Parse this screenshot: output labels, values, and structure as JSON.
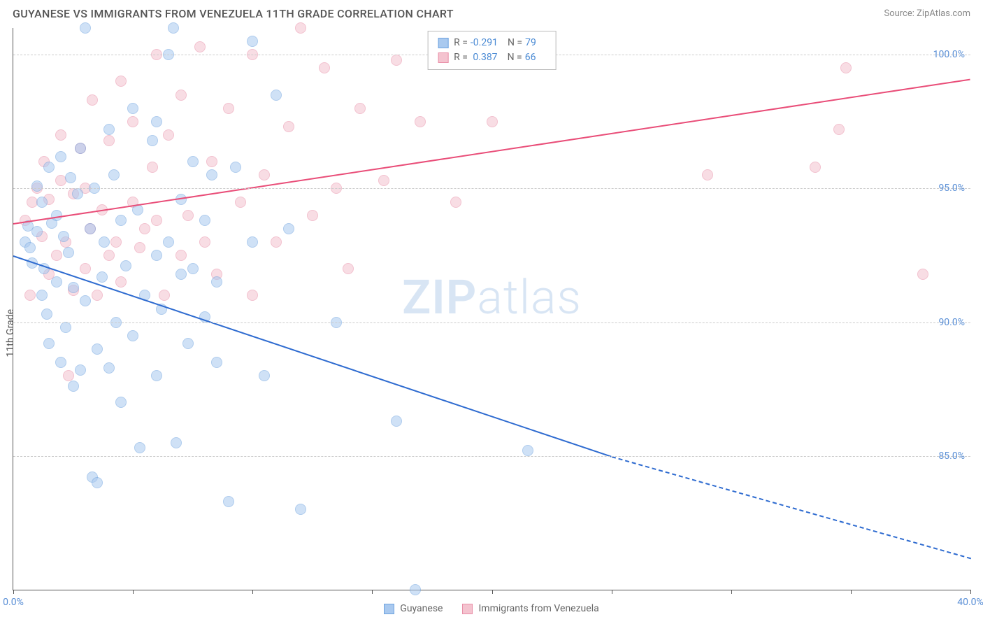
{
  "header": {
    "title": "GUYANESE VS IMMIGRANTS FROM VENEZUELA 11TH GRADE CORRELATION CHART",
    "source": "Source: ZipAtlas.com"
  },
  "chart": {
    "type": "scatter",
    "y_axis_label": "11th Grade",
    "watermark_left": "ZIP",
    "watermark_right": "atlas",
    "background_color": "#ffffff",
    "grid_color": "#cccccc",
    "axis_color": "#555555",
    "tick_label_color": "#5a8fd6",
    "xlim": [
      0,
      40
    ],
    "ylim": [
      80,
      101
    ],
    "yticks": [
      85.0,
      90.0,
      95.0,
      100.0
    ],
    "ytick_labels": [
      "85.0%",
      "90.0%",
      "95.0%",
      "100.0%"
    ],
    "xticks": [
      0,
      5,
      10,
      15,
      20,
      25,
      30,
      35,
      40
    ],
    "xtick_labels": {
      "0": "0.0%",
      "40": "40.0%"
    },
    "series": {
      "guyanese": {
        "label": "Guyanese",
        "fill": "#a9c9ef",
        "stroke": "#6ea3df",
        "trend_color": "#2e6bd0",
        "R": "-0.291",
        "N": "79",
        "trend": {
          "x1": 0,
          "y1": 92.5,
          "x2": 25,
          "y2": 85.0
        },
        "trend_dash": {
          "x1": 25,
          "y1": 85.0,
          "x2": 40,
          "y2": 81.2
        },
        "points": [
          [
            0.5,
            93.0
          ],
          [
            0.6,
            93.6
          ],
          [
            0.7,
            92.8
          ],
          [
            0.8,
            92.2
          ],
          [
            1.0,
            93.4
          ],
          [
            1.0,
            95.1
          ],
          [
            1.2,
            94.5
          ],
          [
            1.2,
            91.0
          ],
          [
            1.3,
            92.0
          ],
          [
            1.4,
            90.3
          ],
          [
            1.5,
            95.8
          ],
          [
            1.5,
            89.2
          ],
          [
            1.6,
            93.7
          ],
          [
            1.8,
            94.0
          ],
          [
            1.8,
            91.5
          ],
          [
            2.0,
            96.2
          ],
          [
            2.0,
            88.5
          ],
          [
            2.1,
            93.2
          ],
          [
            2.2,
            89.8
          ],
          [
            2.3,
            92.6
          ],
          [
            2.4,
            95.4
          ],
          [
            2.5,
            87.6
          ],
          [
            2.5,
            91.3
          ],
          [
            2.7,
            94.8
          ],
          [
            2.8,
            96.5
          ],
          [
            2.8,
            88.2
          ],
          [
            3.0,
            101.0
          ],
          [
            3.0,
            90.8
          ],
          [
            3.2,
            93.5
          ],
          [
            3.3,
            84.2
          ],
          [
            3.4,
            95.0
          ],
          [
            3.5,
            89.0
          ],
          [
            3.5,
            84.0
          ],
          [
            3.7,
            91.7
          ],
          [
            3.8,
            93.0
          ],
          [
            4.0,
            97.2
          ],
          [
            4.0,
            88.3
          ],
          [
            4.2,
            95.5
          ],
          [
            4.3,
            90.0
          ],
          [
            4.5,
            93.8
          ],
          [
            4.5,
            87.0
          ],
          [
            4.7,
            92.1
          ],
          [
            5.0,
            98.0
          ],
          [
            5.0,
            89.5
          ],
          [
            5.2,
            94.2
          ],
          [
            5.3,
            85.3
          ],
          [
            5.5,
            91.0
          ],
          [
            5.8,
            96.8
          ],
          [
            6.0,
            97.5
          ],
          [
            6.0,
            88.0
          ],
          [
            6.0,
            92.5
          ],
          [
            6.2,
            90.5
          ],
          [
            6.5,
            100.0
          ],
          [
            6.5,
            93.0
          ],
          [
            6.7,
            101.0
          ],
          [
            6.8,
            85.5
          ],
          [
            7.0,
            91.8
          ],
          [
            7.0,
            94.6
          ],
          [
            7.3,
            89.2
          ],
          [
            7.5,
            96.0
          ],
          [
            7.5,
            92.0
          ],
          [
            8.0,
            93.8
          ],
          [
            8.0,
            90.2
          ],
          [
            8.3,
            95.5
          ],
          [
            8.5,
            91.5
          ],
          [
            8.5,
            88.5
          ],
          [
            9.0,
            83.3
          ],
          [
            9.3,
            95.8
          ],
          [
            10.0,
            93.0
          ],
          [
            10.0,
            100.5
          ],
          [
            10.5,
            88.0
          ],
          [
            11.0,
            98.5
          ],
          [
            11.5,
            93.5
          ],
          [
            12.0,
            83.0
          ],
          [
            13.5,
            90.0
          ],
          [
            16.0,
            86.3
          ],
          [
            16.8,
            80.0
          ],
          [
            21.5,
            85.2
          ]
        ]
      },
      "venezuela": {
        "label": "Immigrants from Venezuela",
        "fill": "#f4c3cf",
        "stroke": "#e98fa8",
        "trend_color": "#e94d78",
        "R": "0.387",
        "N": "66",
        "trend": {
          "x1": 0,
          "y1": 93.7,
          "x2": 40,
          "y2": 99.1
        },
        "points": [
          [
            0.5,
            93.8
          ],
          [
            0.7,
            91.0
          ],
          [
            0.8,
            94.5
          ],
          [
            1.0,
            95.0
          ],
          [
            1.2,
            93.2
          ],
          [
            1.3,
            96.0
          ],
          [
            1.5,
            91.8
          ],
          [
            1.5,
            94.6
          ],
          [
            1.8,
            92.5
          ],
          [
            2.0,
            95.3
          ],
          [
            2.0,
            97.0
          ],
          [
            2.2,
            93.0
          ],
          [
            2.3,
            88.0
          ],
          [
            2.5,
            94.8
          ],
          [
            2.5,
            91.2
          ],
          [
            2.8,
            96.5
          ],
          [
            3.0,
            92.0
          ],
          [
            3.0,
            95.0
          ],
          [
            3.2,
            93.5
          ],
          [
            3.3,
            98.3
          ],
          [
            3.5,
            91.0
          ],
          [
            3.7,
            94.2
          ],
          [
            4.0,
            92.5
          ],
          [
            4.0,
            96.8
          ],
          [
            4.3,
            93.0
          ],
          [
            4.5,
            99.0
          ],
          [
            4.5,
            91.5
          ],
          [
            5.0,
            94.5
          ],
          [
            5.0,
            97.5
          ],
          [
            5.3,
            92.8
          ],
          [
            5.5,
            93.5
          ],
          [
            5.8,
            95.8
          ],
          [
            6.0,
            100.0
          ],
          [
            6.0,
            93.8
          ],
          [
            6.3,
            91.0
          ],
          [
            6.5,
            97.0
          ],
          [
            7.0,
            92.5
          ],
          [
            7.0,
            98.5
          ],
          [
            7.3,
            94.0
          ],
          [
            7.8,
            100.3
          ],
          [
            8.0,
            93.0
          ],
          [
            8.3,
            96.0
          ],
          [
            8.5,
            91.8
          ],
          [
            9.0,
            98.0
          ],
          [
            9.5,
            94.5
          ],
          [
            10.0,
            100.0
          ],
          [
            10.0,
            91.0
          ],
          [
            10.5,
            95.5
          ],
          [
            11.0,
            93.0
          ],
          [
            11.5,
            97.3
          ],
          [
            12.0,
            101.0
          ],
          [
            12.5,
            94.0
          ],
          [
            13.0,
            99.5
          ],
          [
            13.5,
            95.0
          ],
          [
            14.0,
            92.0
          ],
          [
            14.5,
            98.0
          ],
          [
            15.5,
            95.3
          ],
          [
            16.0,
            99.8
          ],
          [
            17.0,
            97.5
          ],
          [
            18.5,
            94.5
          ],
          [
            20.0,
            97.5
          ],
          [
            21.0,
            100.5
          ],
          [
            29.0,
            95.5
          ],
          [
            33.5,
            95.8
          ],
          [
            34.5,
            97.2
          ],
          [
            34.8,
            99.5
          ],
          [
            38.0,
            91.8
          ]
        ]
      }
    }
  }
}
